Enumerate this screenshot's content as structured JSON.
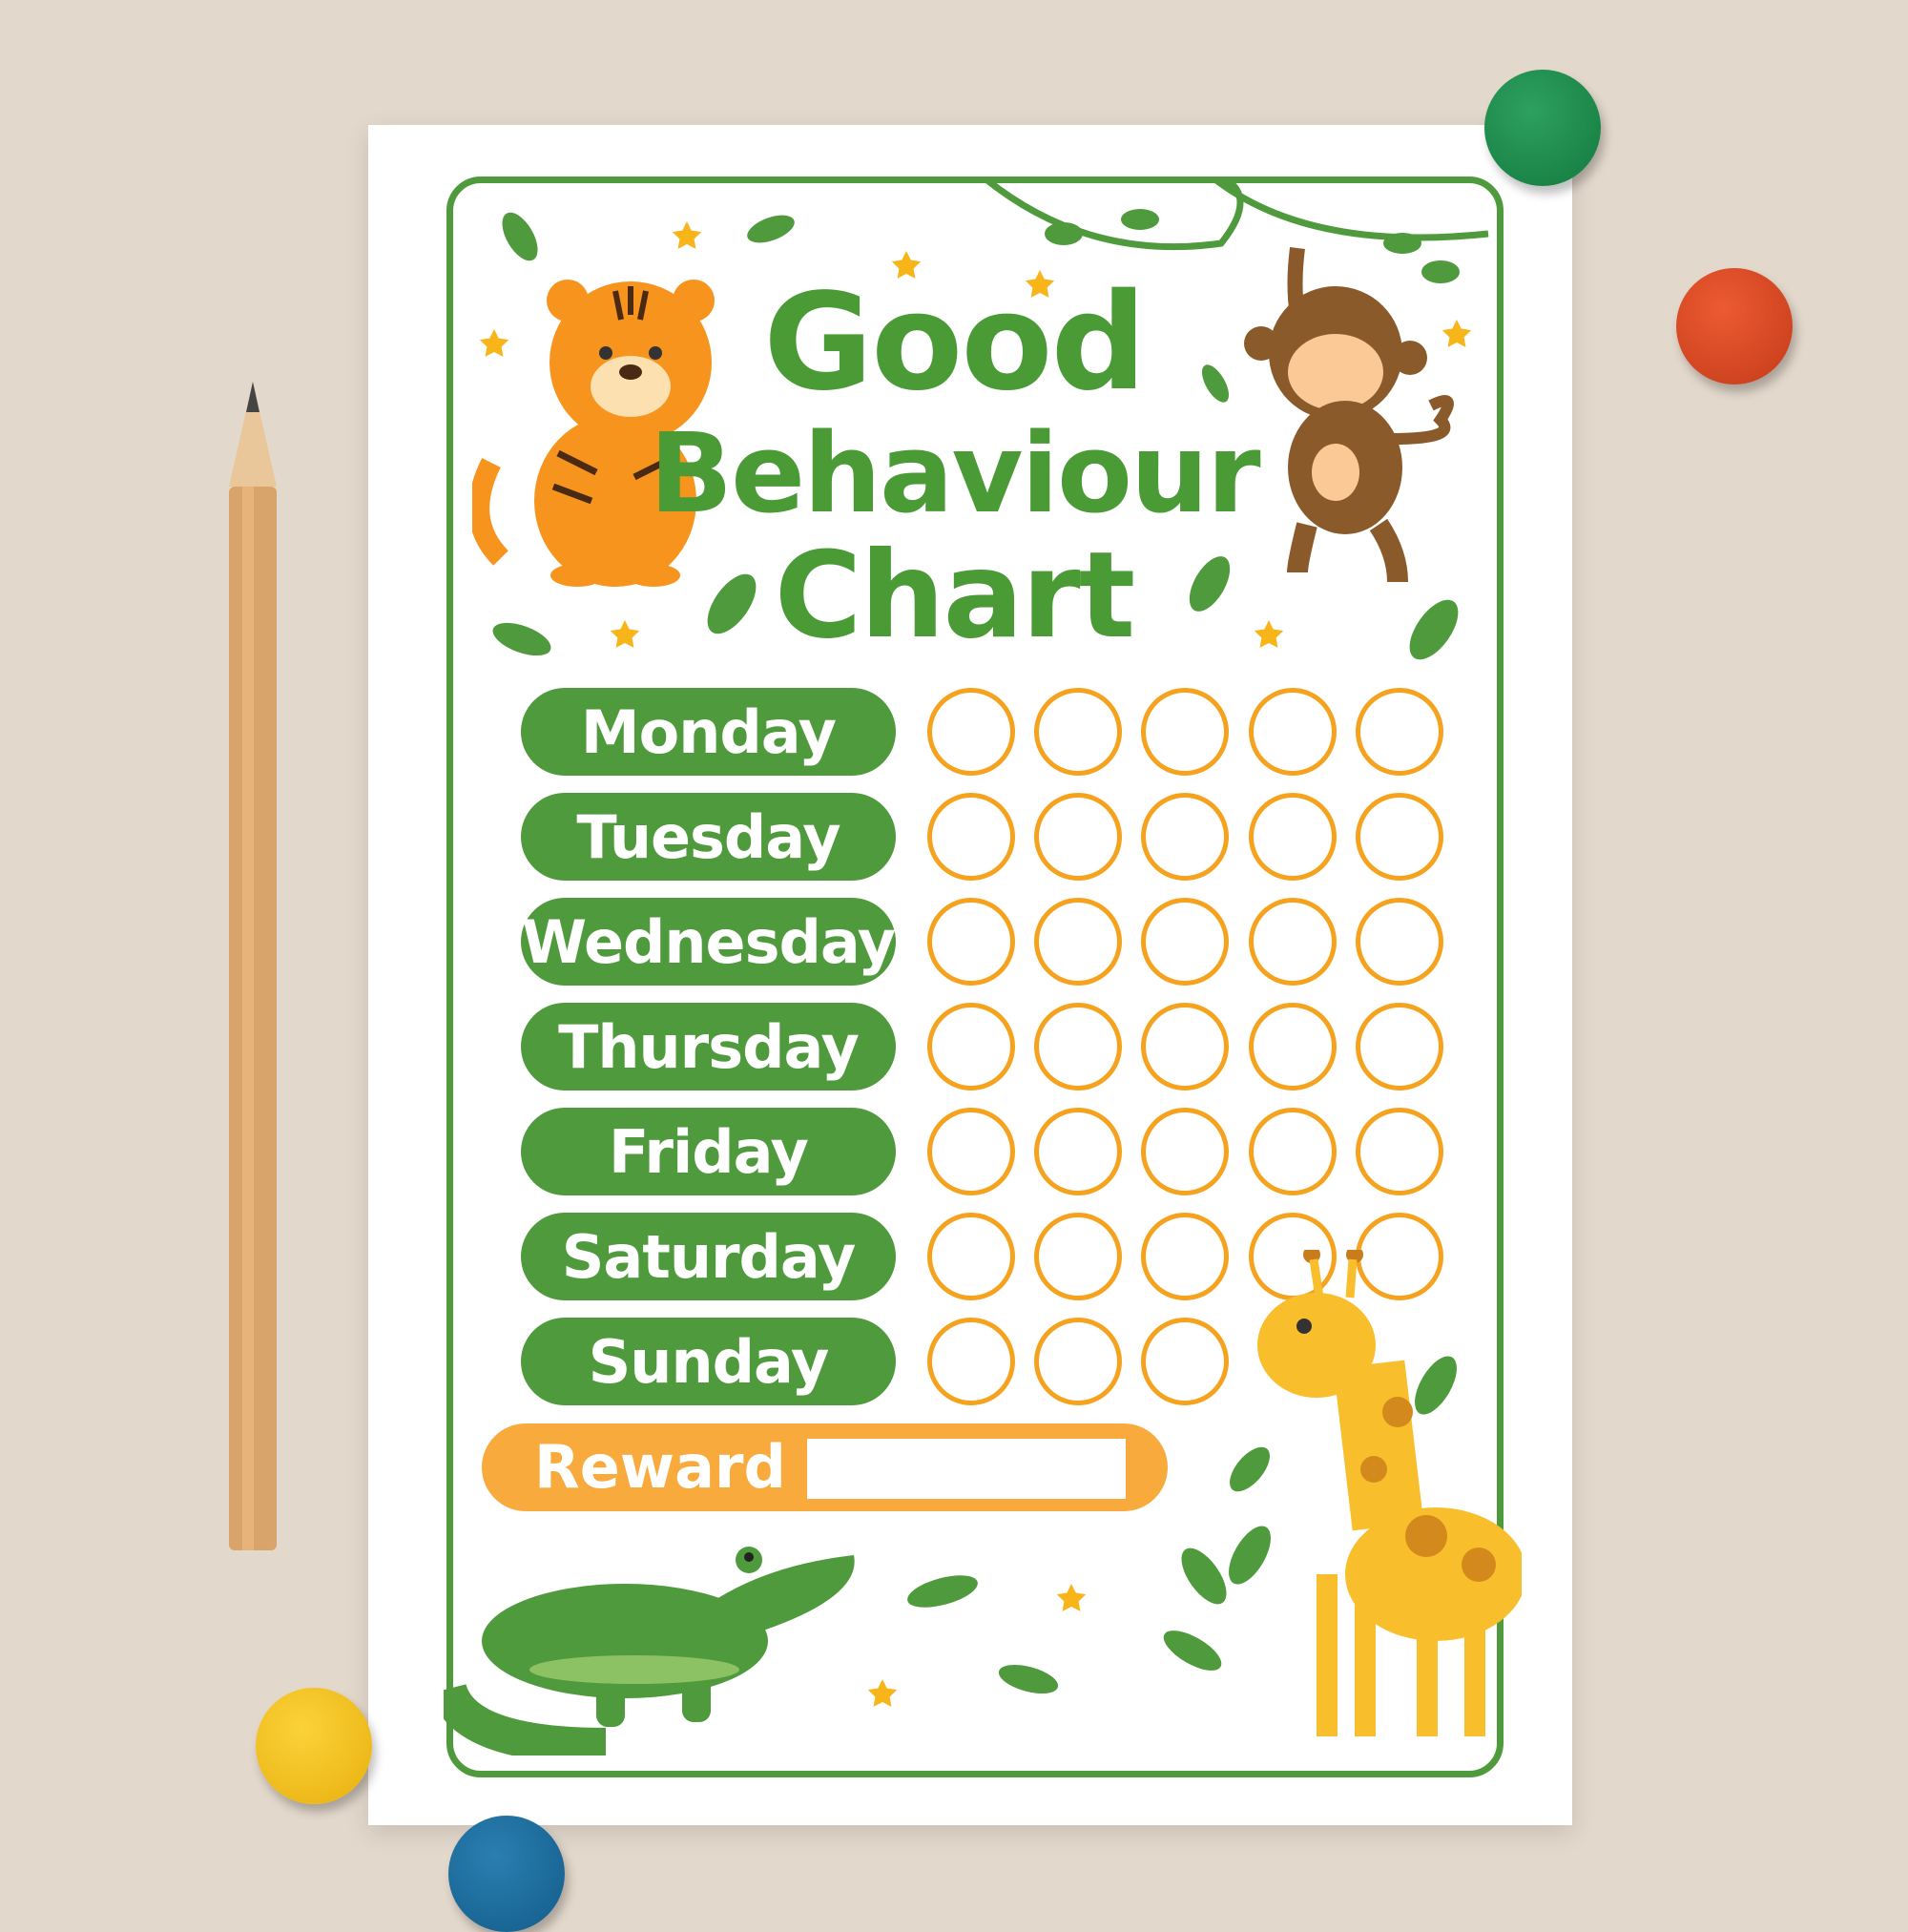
{
  "title": {
    "line1": "Good",
    "line2": "Behaviour",
    "line3": "Chart"
  },
  "days": [
    {
      "label": "Monday",
      "circles": 5
    },
    {
      "label": "Tuesday",
      "circles": 5
    },
    {
      "label": "Wednesday",
      "circles": 5
    },
    {
      "label": "Thursday",
      "circles": 5
    },
    {
      "label": "Friday",
      "circles": 5
    },
    {
      "label": "Saturday",
      "circles": 5
    },
    {
      "label": "Sunday",
      "circles": 3
    }
  ],
  "reward": {
    "label": "Reward",
    "value": ""
  },
  "colors": {
    "green": "#4e9a3c",
    "orange": "#f5a21e",
    "reward": "#f8aa3c",
    "background": "#e3d8cc"
  },
  "decorations": [
    "tiger",
    "monkey",
    "giraffe",
    "crocodile",
    "leaves",
    "stars",
    "pencil",
    "push-pins"
  ]
}
